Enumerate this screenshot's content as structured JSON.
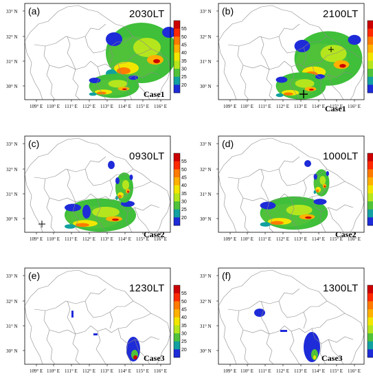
{
  "panels": [
    {
      "id": "a",
      "letter": "(a)",
      "time": "2030LT",
      "case": "Case1"
    },
    {
      "id": "b",
      "letter": "(b)",
      "time": "2100LT",
      "case": "Case1"
    },
    {
      "id": "c",
      "letter": "(c)",
      "time": "0930LT",
      "case": "Case2"
    },
    {
      "id": "d",
      "letter": "(d)",
      "time": "1000LT",
      "case": "Case2"
    },
    {
      "id": "e",
      "letter": "(e)",
      "time": "1230LT",
      "case": "Case3"
    },
    {
      "id": "f",
      "letter": "(f)",
      "time": "1300LT",
      "case": "Case3"
    }
  ],
  "axes": {
    "lon_labels": [
      "109° E",
      "110° E",
      "111° E",
      "112° E",
      "113° E",
      "114° E",
      "115° E",
      "116° E"
    ],
    "lat_labels": [
      "33° N",
      "32° N",
      "31° N",
      "30° N"
    ]
  },
  "colorbar": {
    "labels": [
      "55",
      "50",
      "45",
      "40",
      "35",
      "30",
      "25",
      "20"
    ],
    "colors": [
      "#cc0000",
      "#ff2a00",
      "#ff7a00",
      "#ffb000",
      "#f2e600",
      "#b5e61d",
      "#4fc23a",
      "#12a0a0",
      "#1e2bd8"
    ]
  }
}
